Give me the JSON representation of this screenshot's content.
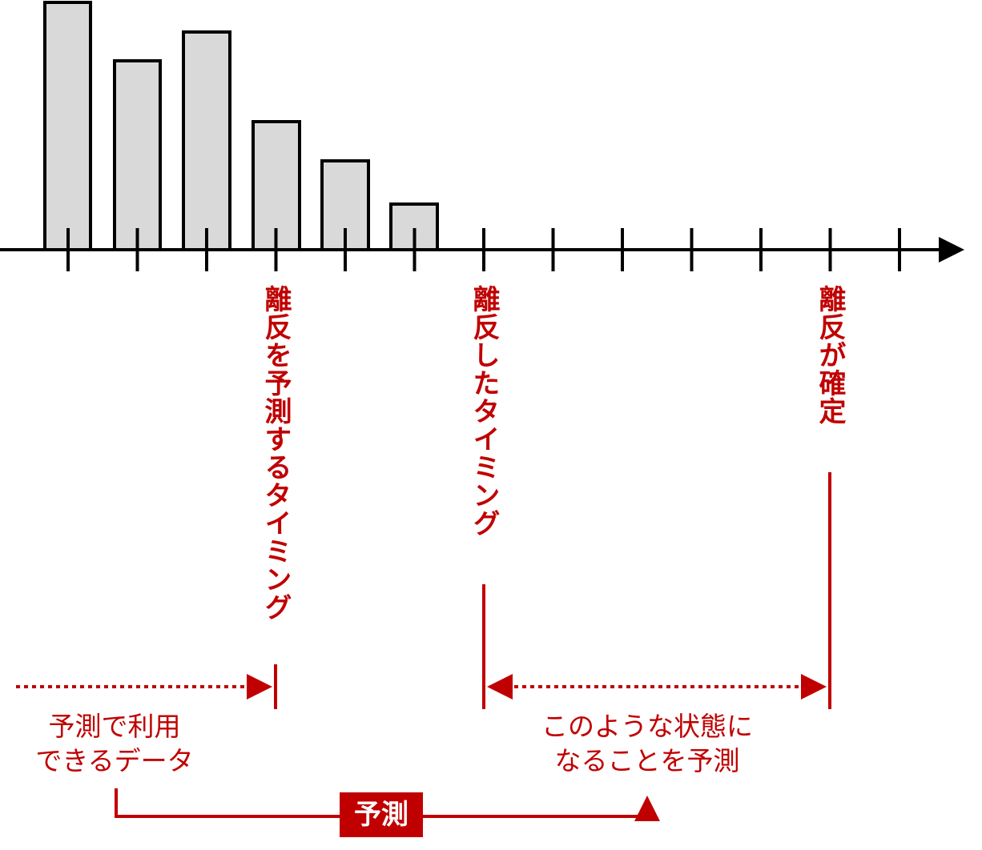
{
  "timeline_labels": [
    "離反を予測するタイミング",
    "離反したタイミング",
    "離反が確定"
  ],
  "data_note": {
    "lines": [
      "予測で利用",
      "できるデータ"
    ]
  },
  "target_note": {
    "lines": [
      "このような状態に",
      "なることを予測"
    ]
  },
  "predict_label": "予測"
}
